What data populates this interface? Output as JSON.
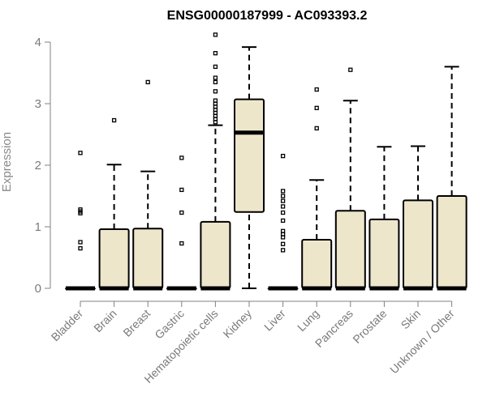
{
  "chart_data": {
    "type": "box",
    "title": "ENSG00000187999 - AC093393.2",
    "xlabel": "",
    "ylabel": "Expression",
    "ylim": [
      0,
      4.1
    ],
    "yticks": [
      0,
      1,
      2,
      3,
      4
    ],
    "grid": false,
    "legend": "none",
    "colors": {
      "box_fill": "#ede6cb",
      "stroke": "#000000",
      "axis": "#808080",
      "outlier": "#000000"
    },
    "categories": [
      "Bladder",
      "Brain",
      "Breast",
      "Gastric",
      "Hematopoietic cells",
      "Kidney",
      "Liver",
      "Lung",
      "Pancreas",
      "Prostate",
      "Skin",
      "Unknown / Other"
    ],
    "boxes": [
      {
        "category": "Bladder",
        "min": 0,
        "q1": 0,
        "median": 0,
        "q3": 0,
        "max": 0,
        "outliers": [
          0.65,
          0.75,
          1.22,
          1.25,
          1.28,
          2.2
        ]
      },
      {
        "category": "Brain",
        "min": 0,
        "q1": 0,
        "median": 0,
        "q3": 0.96,
        "max": 2.01,
        "outliers": [
          2.73
        ]
      },
      {
        "category": "Breast",
        "min": 0,
        "q1": 0,
        "median": 0,
        "q3": 0.97,
        "max": 1.9,
        "outliers": [
          3.35
        ]
      },
      {
        "category": "Gastric",
        "min": 0,
        "q1": 0,
        "median": 0,
        "q3": 0,
        "max": 0,
        "outliers": [
          0.73,
          1.23,
          1.6,
          2.12
        ]
      },
      {
        "category": "Hematopoietic cells",
        "min": 0,
        "q1": 0,
        "median": 0,
        "q3": 1.08,
        "max": 2.65,
        "outliers": [
          2.7,
          2.75,
          2.8,
          2.85,
          2.9,
          2.95,
          3.0,
          3.05,
          3.2,
          3.35,
          3.42,
          3.6,
          3.82,
          4.12
        ]
      },
      {
        "category": "Kidney",
        "min": 0,
        "q1": 1.24,
        "median": 2.53,
        "q3": 3.07,
        "max": 3.92,
        "outliers": []
      },
      {
        "category": "Liver",
        "min": 0,
        "q1": 0,
        "median": 0,
        "q3": 0,
        "max": 0,
        "outliers": [
          0.62,
          0.72,
          0.83,
          0.88,
          0.93,
          1.1,
          1.23,
          1.33,
          1.42,
          1.5,
          1.58,
          2.15
        ]
      },
      {
        "category": "Lung",
        "min": 0,
        "q1": 0,
        "median": 0,
        "q3": 0.79,
        "max": 1.76,
        "outliers": [
          2.6,
          2.93,
          3.23
        ]
      },
      {
        "category": "Pancreas",
        "min": 0,
        "q1": 0,
        "median": 0,
        "q3": 1.26,
        "max": 3.05,
        "outliers": [
          3.55
        ]
      },
      {
        "category": "Prostate",
        "min": 0,
        "q1": 0,
        "median": 0,
        "q3": 1.12,
        "max": 2.3,
        "outliers": []
      },
      {
        "category": "Skin",
        "min": 0,
        "q1": 0,
        "median": 0,
        "q3": 1.43,
        "max": 2.31,
        "outliers": []
      },
      {
        "category": "Unknown / Other",
        "min": 0,
        "q1": 0,
        "median": 0,
        "q3": 1.5,
        "max": 3.6,
        "outliers": []
      }
    ]
  }
}
